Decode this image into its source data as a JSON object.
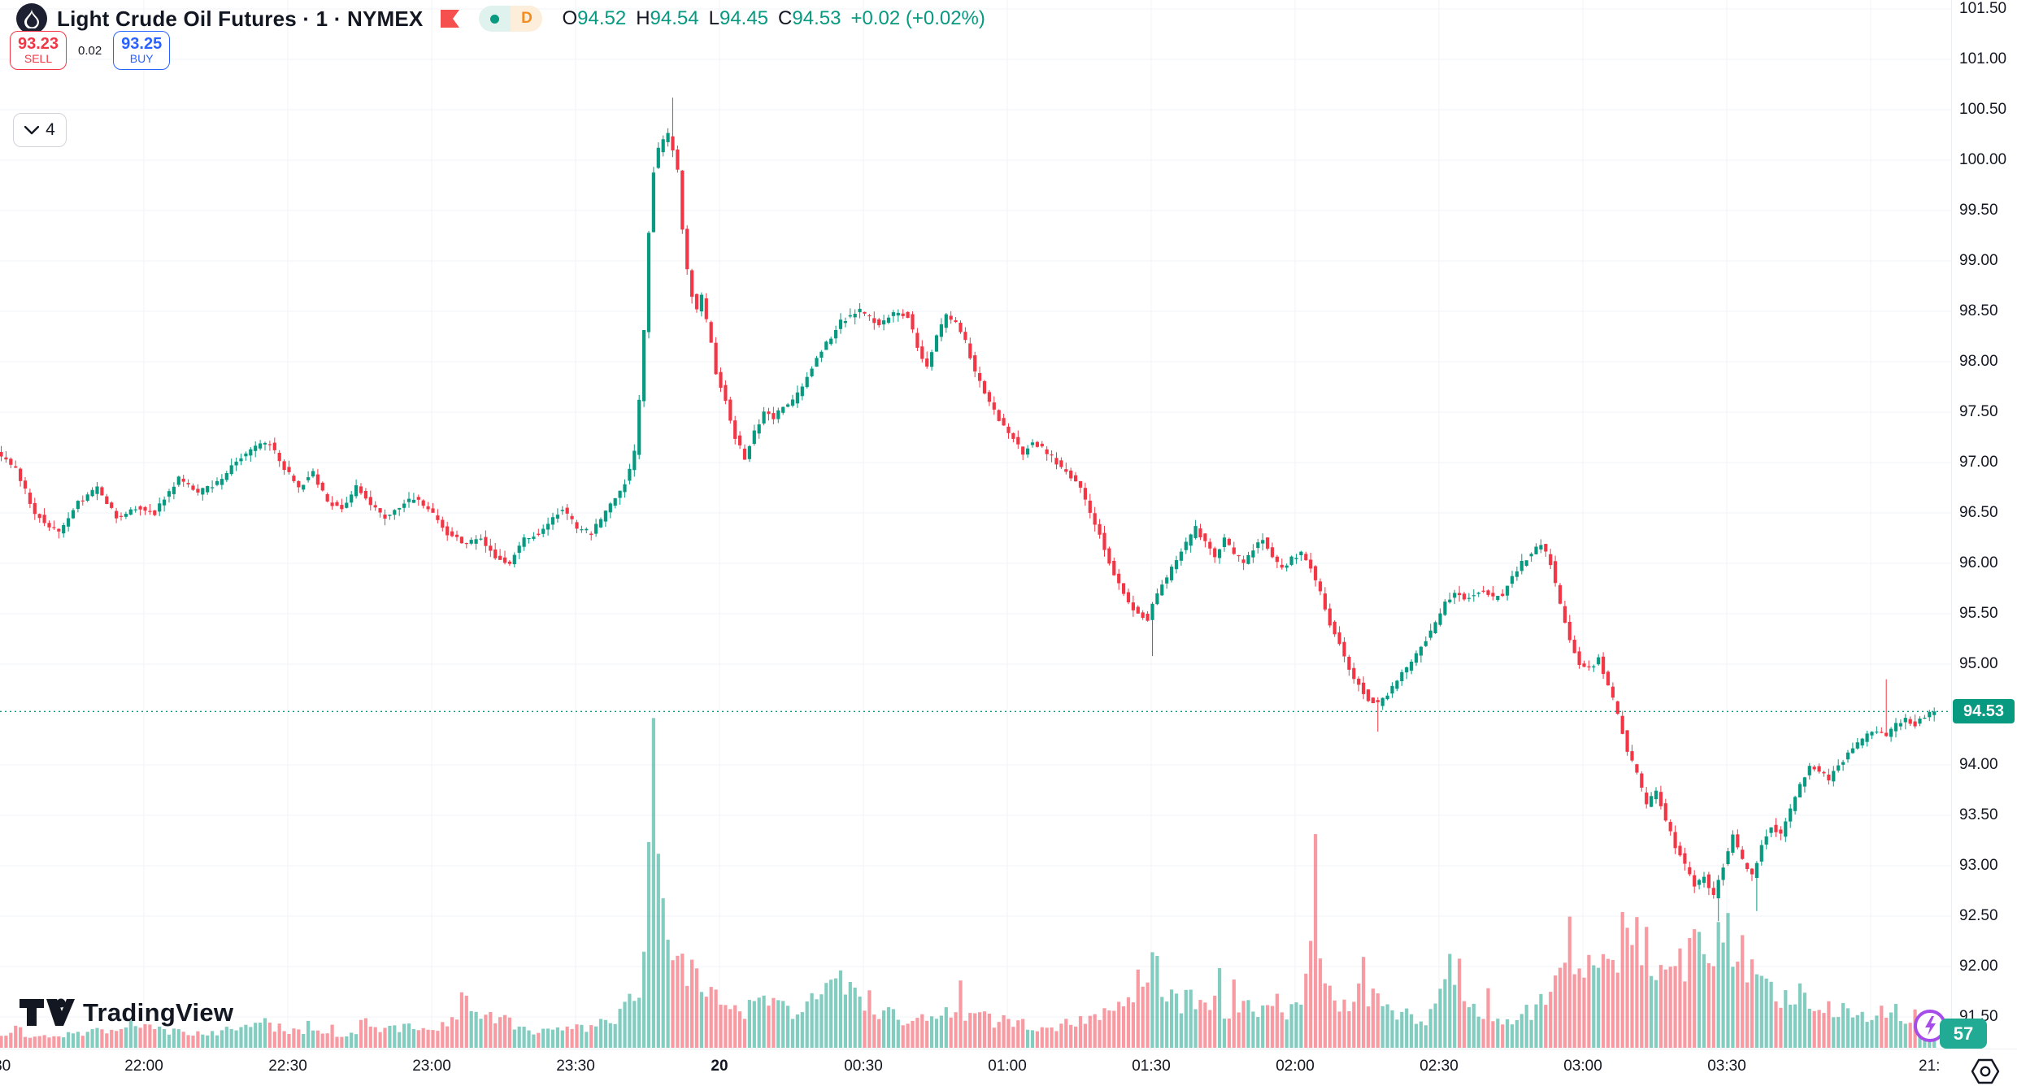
{
  "header": {
    "symbol_title": "Light Crude Oil Futures · 1 · NYMEX",
    "ohlc": {
      "o_label": "O",
      "o": "94.52",
      "h_label": "H",
      "h": "94.54",
      "l_label": "L",
      "l": "94.45",
      "c_label": "C",
      "c": "94.53",
      "change": "+0.02 (+0.02%)"
    },
    "delayed_badge": "D",
    "objects_count": "4"
  },
  "order_panel": {
    "sell_price": "93.23",
    "sell_label": "SELL",
    "spread": "0.02",
    "buy_price": "93.25",
    "buy_label": "BUY"
  },
  "watermark": "TradingView",
  "axes": {
    "price_ticks": [
      "101.50",
      "101.00",
      "100.50",
      "100.00",
      "99.50",
      "99.00",
      "98.50",
      "98.00",
      "97.50",
      "97.00",
      "96.50",
      "96.00",
      "95.50",
      "95.00",
      "94.00",
      "93.50",
      "93.00",
      "92.50",
      "92.00",
      "91.50"
    ],
    "time_ticks": [
      {
        "label": ":30",
        "m": 0
      },
      {
        "label": "22:00",
        "m": 30
      },
      {
        "label": "22:30",
        "m": 60
      },
      {
        "label": "23:00",
        "m": 90
      },
      {
        "label": "23:30",
        "m": 120
      },
      {
        "label": "20",
        "m": 150,
        "bold": true
      },
      {
        "label": "00:30",
        "m": 180
      },
      {
        "label": "01:00",
        "m": 210
      },
      {
        "label": "01:30",
        "m": 240
      },
      {
        "label": "02:00",
        "m": 270
      },
      {
        "label": "02:30",
        "m": 300
      },
      {
        "label": "03:00",
        "m": 330
      },
      {
        "label": "03:30",
        "m": 360
      },
      {
        "label": "",
        "m": 390
      }
    ],
    "right_edge_time": "21:",
    "last_price": "94.53",
    "countdown": "57"
  },
  "chart_data": {
    "type": "candlestick",
    "title": "Light Crude Oil Futures",
    "interval": "1 minute",
    "exchange": "NYMEX",
    "legend_ohlc": {
      "open": 94.52,
      "high": 94.54,
      "low": 94.45,
      "close": 94.53,
      "change": 0.02,
      "change_pct": "+0.02%"
    },
    "last_price": 94.53,
    "sell": 93.23,
    "buy": 93.25,
    "y_axis_range": [
      91.2,
      101.6
    ],
    "y_grid_step": 0.5,
    "x_axis": "minutes since 21:30, one 1-minute bar each",
    "colors": {
      "up": "#089981",
      "down": "#f23645",
      "vol_up": "rgba(8,153,129,0.5)",
      "vol_down": "rgba(242,54,69,0.5)",
      "grid": "#f2f3f5",
      "last_price_line": "#089981"
    },
    "price_path": [
      [
        0,
        97.1
      ],
      [
        4,
        96.95
      ],
      [
        8,
        96.5
      ],
      [
        13,
        96.3
      ],
      [
        17,
        96.6
      ],
      [
        21,
        96.75
      ],
      [
        25,
        96.45
      ],
      [
        29,
        96.55
      ],
      [
        33,
        96.5
      ],
      [
        38,
        96.85
      ],
      [
        42,
        96.7
      ],
      [
        46,
        96.8
      ],
      [
        50,
        97.0
      ],
      [
        54,
        97.15
      ],
      [
        57,
        97.2
      ],
      [
        60,
        96.95
      ],
      [
        63,
        96.75
      ],
      [
        66,
        96.9
      ],
      [
        69,
        96.6
      ],
      [
        72,
        96.55
      ],
      [
        75,
        96.75
      ],
      [
        78,
        96.6
      ],
      [
        81,
        96.45
      ],
      [
        84,
        96.55
      ],
      [
        87,
        96.65
      ],
      [
        90,
        96.55
      ],
      [
        94,
        96.3
      ],
      [
        98,
        96.2
      ],
      [
        101,
        96.25
      ],
      [
        104,
        96.05
      ],
      [
        107,
        96.0
      ],
      [
        110,
        96.25
      ],
      [
        113,
        96.3
      ],
      [
        116,
        96.45
      ],
      [
        118,
        96.55
      ],
      [
        121,
        96.35
      ],
      [
        124,
        96.3
      ],
      [
        127,
        96.5
      ],
      [
        129,
        96.65
      ],
      [
        131,
        96.8
      ],
      [
        133,
        97.1
      ],
      [
        134,
        97.6
      ],
      [
        135,
        98.3
      ],
      [
        136,
        99.3
      ],
      [
        137,
        99.9
      ],
      [
        138,
        100.1
      ],
      [
        139,
        100.2
      ],
      [
        140,
        100.25
      ],
      [
        141,
        100.1
      ],
      [
        142,
        99.9
      ],
      [
        143,
        99.3
      ],
      [
        144,
        98.9
      ],
      [
        145,
        98.65
      ],
      [
        146,
        98.5
      ],
      [
        147,
        98.65
      ],
      [
        148,
        98.4
      ],
      [
        149,
        98.2
      ],
      [
        150,
        97.9
      ],
      [
        152,
        97.6
      ],
      [
        154,
        97.25
      ],
      [
        156,
        97.05
      ],
      [
        158,
        97.3
      ],
      [
        160,
        97.5
      ],
      [
        162,
        97.45
      ],
      [
        164,
        97.55
      ],
      [
        166,
        97.6
      ],
      [
        168,
        97.75
      ],
      [
        170,
        97.95
      ],
      [
        172,
        98.1
      ],
      [
        174,
        98.25
      ],
      [
        176,
        98.4
      ],
      [
        178,
        98.45
      ],
      [
        180,
        98.5
      ],
      [
        182,
        98.45
      ],
      [
        184,
        98.35
      ],
      [
        186,
        98.45
      ],
      [
        188,
        98.5
      ],
      [
        190,
        98.45
      ],
      [
        192,
        98.15
      ],
      [
        194,
        97.95
      ],
      [
        196,
        98.25
      ],
      [
        198,
        98.45
      ],
      [
        200,
        98.4
      ],
      [
        202,
        98.2
      ],
      [
        204,
        97.9
      ],
      [
        206,
        97.7
      ],
      [
        208,
        97.5
      ],
      [
        210,
        97.35
      ],
      [
        212,
        97.25
      ],
      [
        214,
        97.1
      ],
      [
        216,
        97.2
      ],
      [
        218,
        97.15
      ],
      [
        220,
        97.05
      ],
      [
        222,
        96.95
      ],
      [
        224,
        96.85
      ],
      [
        226,
        96.75
      ],
      [
        228,
        96.5
      ],
      [
        230,
        96.3
      ],
      [
        232,
        96.0
      ],
      [
        234,
        95.8
      ],
      [
        236,
        95.6
      ],
      [
        238,
        95.5
      ],
      [
        240,
        95.45
      ],
      [
        242,
        95.7
      ],
      [
        244,
        95.85
      ],
      [
        246,
        96.05
      ],
      [
        248,
        96.2
      ],
      [
        250,
        96.35
      ],
      [
        252,
        96.2
      ],
      [
        254,
        96.05
      ],
      [
        256,
        96.25
      ],
      [
        258,
        96.1
      ],
      [
        260,
        96.0
      ],
      [
        262,
        96.15
      ],
      [
        264,
        96.25
      ],
      [
        266,
        96.05
      ],
      [
        268,
        95.95
      ],
      [
        270,
        96.05
      ],
      [
        272,
        96.1
      ],
      [
        274,
        95.95
      ],
      [
        276,
        95.7
      ],
      [
        278,
        95.4
      ],
      [
        280,
        95.2
      ],
      [
        282,
        94.95
      ],
      [
        284,
        94.8
      ],
      [
        286,
        94.65
      ],
      [
        288,
        94.6
      ],
      [
        290,
        94.7
      ],
      [
        292,
        94.85
      ],
      [
        294,
        94.95
      ],
      [
        296,
        95.1
      ],
      [
        298,
        95.25
      ],
      [
        300,
        95.4
      ],
      [
        302,
        95.6
      ],
      [
        304,
        95.7
      ],
      [
        306,
        95.65
      ],
      [
        308,
        95.7
      ],
      [
        310,
        95.75
      ],
      [
        312,
        95.65
      ],
      [
        314,
        95.7
      ],
      [
        316,
        95.85
      ],
      [
        318,
        96.0
      ],
      [
        320,
        96.1
      ],
      [
        322,
        96.2
      ],
      [
        324,
        96.0
      ],
      [
        326,
        95.6
      ],
      [
        328,
        95.25
      ],
      [
        330,
        95.0
      ],
      [
        332,
        94.95
      ],
      [
        334,
        95.05
      ],
      [
        336,
        94.8
      ],
      [
        338,
        94.5
      ],
      [
        340,
        94.15
      ],
      [
        342,
        93.9
      ],
      [
        344,
        93.6
      ],
      [
        346,
        93.75
      ],
      [
        348,
        93.45
      ],
      [
        350,
        93.2
      ],
      [
        352,
        93.0
      ],
      [
        354,
        92.8
      ],
      [
        356,
        92.9
      ],
      [
        358,
        92.7
      ],
      [
        360,
        93.0
      ],
      [
        362,
        93.3
      ],
      [
        364,
        93.05
      ],
      [
        366,
        92.9
      ],
      [
        368,
        93.2
      ],
      [
        370,
        93.4
      ],
      [
        372,
        93.3
      ],
      [
        374,
        93.55
      ],
      [
        376,
        93.8
      ],
      [
        378,
        94.0
      ],
      [
        380,
        93.95
      ],
      [
        382,
        93.85
      ],
      [
        384,
        94.0
      ],
      [
        386,
        94.1
      ],
      [
        388,
        94.2
      ],
      [
        390,
        94.3
      ],
      [
        392,
        94.35
      ],
      [
        394,
        94.3
      ],
      [
        396,
        94.4
      ],
      [
        398,
        94.45
      ],
      [
        400,
        94.4
      ],
      [
        402,
        94.48
      ],
      [
        404,
        94.53
      ]
    ],
    "wick_events": [
      {
        "m": 140,
        "high": 100.62
      },
      {
        "m": 240,
        "low": 95.08
      },
      {
        "m": 287,
        "low": 94.33
      },
      {
        "m": 358,
        "low": 92.45
      },
      {
        "m": 366,
        "low": 92.55
      },
      {
        "m": 393,
        "high": 94.85
      }
    ],
    "volume_profile": [
      [
        0,
        18
      ],
      [
        10,
        12
      ],
      [
        20,
        20
      ],
      [
        30,
        25
      ],
      [
        40,
        15
      ],
      [
        55,
        30
      ],
      [
        60,
        22
      ],
      [
        70,
        15
      ],
      [
        80,
        28
      ],
      [
        90,
        20
      ],
      [
        100,
        45
      ],
      [
        108,
        25
      ],
      [
        115,
        18
      ],
      [
        125,
        30
      ],
      [
        130,
        45
      ],
      [
        133,
        80
      ],
      [
        135,
        200
      ],
      [
        136,
        330
      ],
      [
        137,
        260
      ],
      [
        138,
        170
      ],
      [
        139,
        140
      ],
      [
        141,
        120
      ],
      [
        143,
        95
      ],
      [
        146,
        75
      ],
      [
        150,
        60
      ],
      [
        155,
        45
      ],
      [
        160,
        55
      ],
      [
        165,
        40
      ],
      [
        170,
        60
      ],
      [
        175,
        80
      ],
      [
        178,
        65
      ],
      [
        182,
        45
      ],
      [
        188,
        35
      ],
      [
        194,
        40
      ],
      [
        200,
        45
      ],
      [
        206,
        35
      ],
      [
        212,
        30
      ],
      [
        220,
        25
      ],
      [
        228,
        40
      ],
      [
        233,
        60
      ],
      [
        236,
        75
      ],
      [
        240,
        105
      ],
      [
        243,
        70
      ],
      [
        246,
        55
      ],
      [
        250,
        65
      ],
      [
        255,
        45
      ],
      [
        260,
        55
      ],
      [
        266,
        40
      ],
      [
        270,
        50
      ],
      [
        274,
        135
      ],
      [
        277,
        70
      ],
      [
        280,
        55
      ],
      [
        284,
        65
      ],
      [
        288,
        50
      ],
      [
        292,
        40
      ],
      [
        297,
        35
      ],
      [
        302,
        120
      ],
      [
        306,
        60
      ],
      [
        310,
        40
      ],
      [
        315,
        35
      ],
      [
        320,
        50
      ],
      [
        322,
        70
      ],
      [
        325,
        90
      ],
      [
        328,
        75
      ],
      [
        332,
        100
      ],
      [
        336,
        110
      ],
      [
        340,
        170
      ],
      [
        343,
        120
      ],
      [
        346,
        90
      ],
      [
        350,
        100
      ],
      [
        354,
        130
      ],
      [
        357,
        110
      ],
      [
        360,
        150
      ],
      [
        363,
        110
      ],
      [
        366,
        80
      ],
      [
        370,
        60
      ],
      [
        374,
        70
      ],
      [
        378,
        55
      ],
      [
        382,
        45
      ],
      [
        386,
        50
      ],
      [
        390,
        40
      ],
      [
        394,
        45
      ],
      [
        398,
        35
      ],
      [
        401,
        30
      ],
      [
        404,
        25
      ]
    ]
  }
}
